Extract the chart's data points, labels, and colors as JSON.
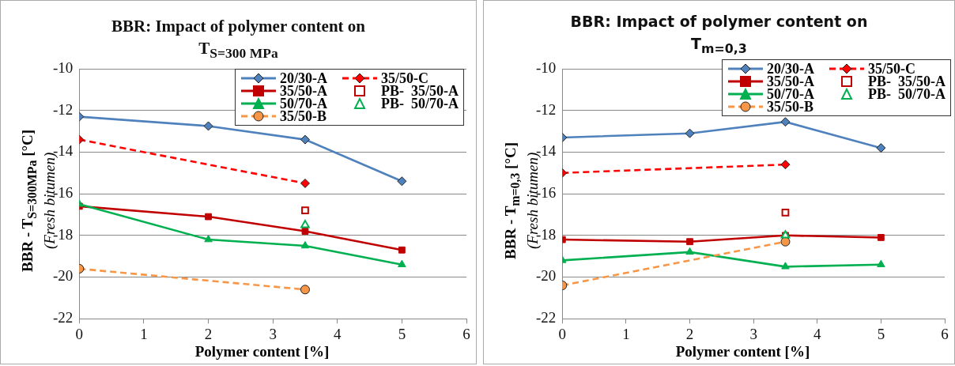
{
  "chart_data": [
    {
      "type": "line",
      "title": "BBR:  Impact of polymer content on T$_{S=300 MPa}$",
      "xlabel": "Polymer content [%]",
      "ylabel": "BBR  -  T$_{S=300MPa}$ [°C]\n(Fresh bitumen)",
      "xlim": [
        0,
        6
      ],
      "xticks": [
        0,
        1,
        2,
        3,
        4,
        5,
        6
      ],
      "ylim": [
        -22,
        -10
      ],
      "yticks": [
        -22,
        -20,
        -18,
        -16,
        -14,
        -12,
        -10
      ],
      "grid": "y",
      "legend": "top right",
      "series": [
        {
          "name": "20/30-A",
          "color": "#4f81bd",
          "x": [
            0,
            2,
            3.5,
            5
          ],
          "values": [
            -12.3,
            -12.75,
            -13.4,
            -15.4
          ],
          "marker": "diamond",
          "line_style": "solid"
        },
        {
          "name": "35/50-A",
          "color": "#c00000",
          "x": [
            0,
            2,
            3.5,
            5
          ],
          "values": [
            -16.6,
            -17.1,
            -17.8,
            -18.7
          ],
          "marker": "square",
          "line_style": "solid"
        },
        {
          "name": "50/70-A",
          "color": "#00b050",
          "x": [
            0,
            2,
            3.5,
            5
          ],
          "values": [
            -16.5,
            -18.2,
            -18.5,
            -19.4
          ],
          "marker": "triangle",
          "line_style": "solid"
        },
        {
          "name": "35/50-B",
          "color": "#f79646",
          "x": [
            0,
            3.5
          ],
          "values": [
            -19.6,
            -20.6
          ],
          "marker": "circle",
          "line_style": "dashed"
        },
        {
          "name": "35/50-C",
          "color": "#ff0000",
          "x": [
            0,
            3.5
          ],
          "values": [
            -13.4,
            -15.5
          ],
          "marker": "diamond",
          "line_style": "dashed"
        },
        {
          "name": "PB-  35/50-A",
          "type": "scatter",
          "color": "#c00000",
          "x": [
            3.5
          ],
          "values": [
            -16.8
          ],
          "marker": "square"
        },
        {
          "name": "PB-  50/70-A",
          "type": "scatter",
          "color": "#00b050",
          "x": [
            3.5
          ],
          "values": [
            -17.5
          ],
          "marker": "triangle"
        }
      ]
    },
    {
      "type": "line",
      "title": "BBR:  Impact of polymer content on T$_{m=0,3}$",
      "xlabel": "Polymer content [%]",
      "ylabel": "BBR  -  T$_{m=0,3}$ [°C]\n(Fresh bitumen)",
      "xlim": [
        0,
        6
      ],
      "xticks": [
        0,
        1,
        2,
        3,
        4,
        5,
        6
      ],
      "ylim": [
        -22,
        -10
      ],
      "yticks": [
        -22,
        -20,
        -18,
        -16,
        -14,
        -12,
        -10
      ],
      "grid": "y",
      "legend": "top right",
      "series": [
        {
          "name": "20/30-A",
          "color": "#4f81bd",
          "x": [
            0,
            2,
            3.5,
            5
          ],
          "values": [
            -13.3,
            -13.1,
            -12.55,
            -13.8
          ],
          "marker": "diamond",
          "line_style": "solid"
        },
        {
          "name": "35/50-A",
          "color": "#c00000",
          "x": [
            0,
            2,
            3.5,
            5
          ],
          "values": [
            -18.2,
            -18.3,
            -18.0,
            -18.1
          ],
          "marker": "square",
          "line_style": "solid"
        },
        {
          "name": "50/70-A",
          "color": "#00b050",
          "x": [
            0,
            2,
            3.5,
            5
          ],
          "values": [
            -19.2,
            -18.8,
            -19.5,
            -19.4
          ],
          "marker": "triangle",
          "line_style": "solid"
        },
        {
          "name": "35/50-B",
          "color": "#f79646",
          "x": [
            0,
            3.5
          ],
          "values": [
            -20.4,
            -18.3
          ],
          "marker": "circle",
          "line_style": "dashed"
        },
        {
          "name": "35/50-C",
          "color": "#ff0000",
          "x": [
            0,
            3.5
          ],
          "values": [
            -15.0,
            -14.6
          ],
          "marker": "diamond",
          "line_style": "dashed"
        },
        {
          "name": "PB-  35/50-A",
          "type": "scatter",
          "color": "#c00000",
          "x": [
            3.5
          ],
          "values": [
            -16.9
          ],
          "marker": "square"
        },
        {
          "name": "PB-  50/70-A",
          "type": "scatter",
          "color": "#00b050",
          "x": [
            3.5
          ],
          "values": [
            -18.0
          ],
          "marker": "triangle"
        }
      ]
    }
  ]
}
